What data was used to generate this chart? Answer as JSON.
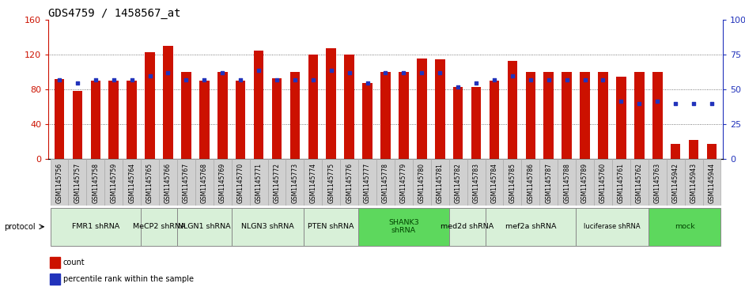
{
  "title": "GDS4759 / 1458567_at",
  "samples": [
    "GSM1145756",
    "GSM1145757",
    "GSM1145758",
    "GSM1145759",
    "GSM1145764",
    "GSM1145765",
    "GSM1145766",
    "GSM1145767",
    "GSM1145768",
    "GSM1145769",
    "GSM1145770",
    "GSM1145771",
    "GSM1145772",
    "GSM1145773",
    "GSM1145774",
    "GSM1145775",
    "GSM1145776",
    "GSM1145777",
    "GSM1145778",
    "GSM1145779",
    "GSM1145780",
    "GSM1145781",
    "GSM1145782",
    "GSM1145783",
    "GSM1145784",
    "GSM1145785",
    "GSM1145786",
    "GSM1145787",
    "GSM1145788",
    "GSM1145789",
    "GSM1145760",
    "GSM1145761",
    "GSM1145762",
    "GSM1145763",
    "GSM1145942",
    "GSM1145943",
    "GSM1145944"
  ],
  "counts": [
    92,
    79,
    90,
    90,
    90,
    123,
    130,
    100,
    90,
    100,
    90,
    125,
    93,
    100,
    120,
    128,
    120,
    88,
    100,
    100,
    116,
    115,
    83,
    83,
    90,
    113,
    100,
    100,
    100,
    100,
    100,
    95,
    100,
    100,
    18,
    22,
    18
  ],
  "percentiles": [
    57,
    55,
    57,
    57,
    57,
    60,
    62,
    57,
    57,
    62,
    57,
    64,
    57,
    57,
    57,
    64,
    62,
    55,
    62,
    62,
    62,
    62,
    52,
    55,
    57,
    60,
    57,
    57,
    57,
    57,
    57,
    42,
    40,
    42,
    40,
    40,
    40
  ],
  "groups": [
    {
      "label": "FMR1 shRNA",
      "start": 0,
      "end": 5,
      "color": "#d8f0d8"
    },
    {
      "label": "MeCP2 shRNA",
      "start": 5,
      "end": 7,
      "color": "#d8f0d8"
    },
    {
      "label": "NLGN1 shRNA",
      "start": 7,
      "end": 10,
      "color": "#d8f0d8"
    },
    {
      "label": "NLGN3 shRNA",
      "start": 10,
      "end": 14,
      "color": "#d8f0d8"
    },
    {
      "label": "PTEN shRNA",
      "start": 14,
      "end": 17,
      "color": "#d8f0d8"
    },
    {
      "label": "SHANK3\nshRNA",
      "start": 17,
      "end": 22,
      "color": "#5dd85d"
    },
    {
      "label": "med2d shRNA",
      "start": 22,
      "end": 24,
      "color": "#d8f0d8"
    },
    {
      "label": "mef2a shRNA",
      "start": 24,
      "end": 29,
      "color": "#d8f0d8"
    },
    {
      "label": "luciferase shRNA",
      "start": 29,
      "end": 33,
      "color": "#d8f0d8"
    },
    {
      "label": "mock",
      "start": 33,
      "end": 37,
      "color": "#5dd85d"
    }
  ],
  "bar_color": "#cc1100",
  "dot_color": "#2233bb",
  "left_ylim": [
    0,
    160
  ],
  "left_yticks": [
    0,
    40,
    80,
    120,
    160
  ],
  "right_yticks": [
    0,
    25,
    50,
    75,
    100
  ],
  "right_yticklabels": [
    "0",
    "25",
    "50",
    "75",
    "100%"
  ],
  "background_color": "#ffffff",
  "grid_color": "#555555",
  "title_fontsize": 10,
  "bar_width": 0.55
}
